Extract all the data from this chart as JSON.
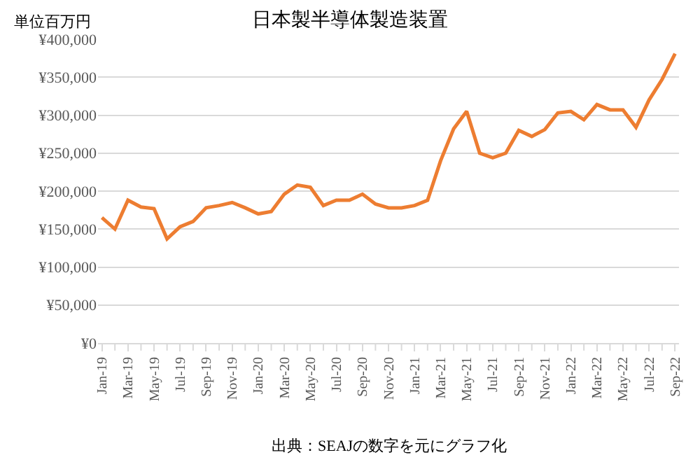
{
  "chart_data": {
    "type": "line",
    "title": "日本製半導体製造装置",
    "ylabel": "単位百万円",
    "annotations": [
      "出典：SEAJの数字を元にグラフ化"
    ],
    "categories": [
      "Jan-19",
      null,
      "Mar-19",
      null,
      "May-19",
      null,
      "Jul-19",
      null,
      "Sep-19",
      null,
      "Nov-19",
      null,
      "Jan-20",
      null,
      "Mar-20",
      null,
      "May-20",
      null,
      "Jul-20",
      null,
      "Sep-20",
      null,
      "Nov-20",
      null,
      "Jan-21",
      null,
      "Mar-21",
      null,
      "May-21",
      null,
      "Jul-21",
      null,
      "Sep-21",
      null,
      "Nov-21",
      null,
      "Jan-22",
      null,
      "Mar-22",
      null,
      "May-22",
      null,
      "Jul-22",
      null,
      "Sep-22"
    ],
    "series": [
      {
        "color": "#ed7d31",
        "values": [
          165000,
          150000,
          188000,
          179000,
          177000,
          137000,
          153000,
          160000,
          178000,
          181000,
          185000,
          178000,
          170000,
          173000,
          196000,
          208000,
          205000,
          181000,
          188000,
          188000,
          196000,
          183000,
          178000,
          178000,
          181000,
          188000,
          240000,
          282000,
          305000,
          250000,
          244000,
          250000,
          280000,
          272000,
          281000,
          303000,
          305000,
          294000,
          314000,
          307000,
          307000,
          284000,
          320000,
          347000,
          381000
        ]
      }
    ],
    "ylim": [
      0,
      400000
    ],
    "yticks": [
      {
        "value": 0,
        "label": "¥0"
      },
      {
        "value": 50000,
        "label": "¥50,000"
      },
      {
        "value": 100000,
        "label": "¥100,000"
      },
      {
        "value": 150000,
        "label": "¥150,000"
      },
      {
        "value": 200000,
        "label": "¥200,000"
      },
      {
        "value": 250000,
        "label": "¥250,000"
      },
      {
        "value": 300000,
        "label": "¥300,000"
      },
      {
        "value": 350000,
        "label": "¥350,000"
      },
      {
        "value": 400000,
        "label": "¥400,000"
      }
    ],
    "grid": "y",
    "marker": "none",
    "line_style": "solid"
  }
}
